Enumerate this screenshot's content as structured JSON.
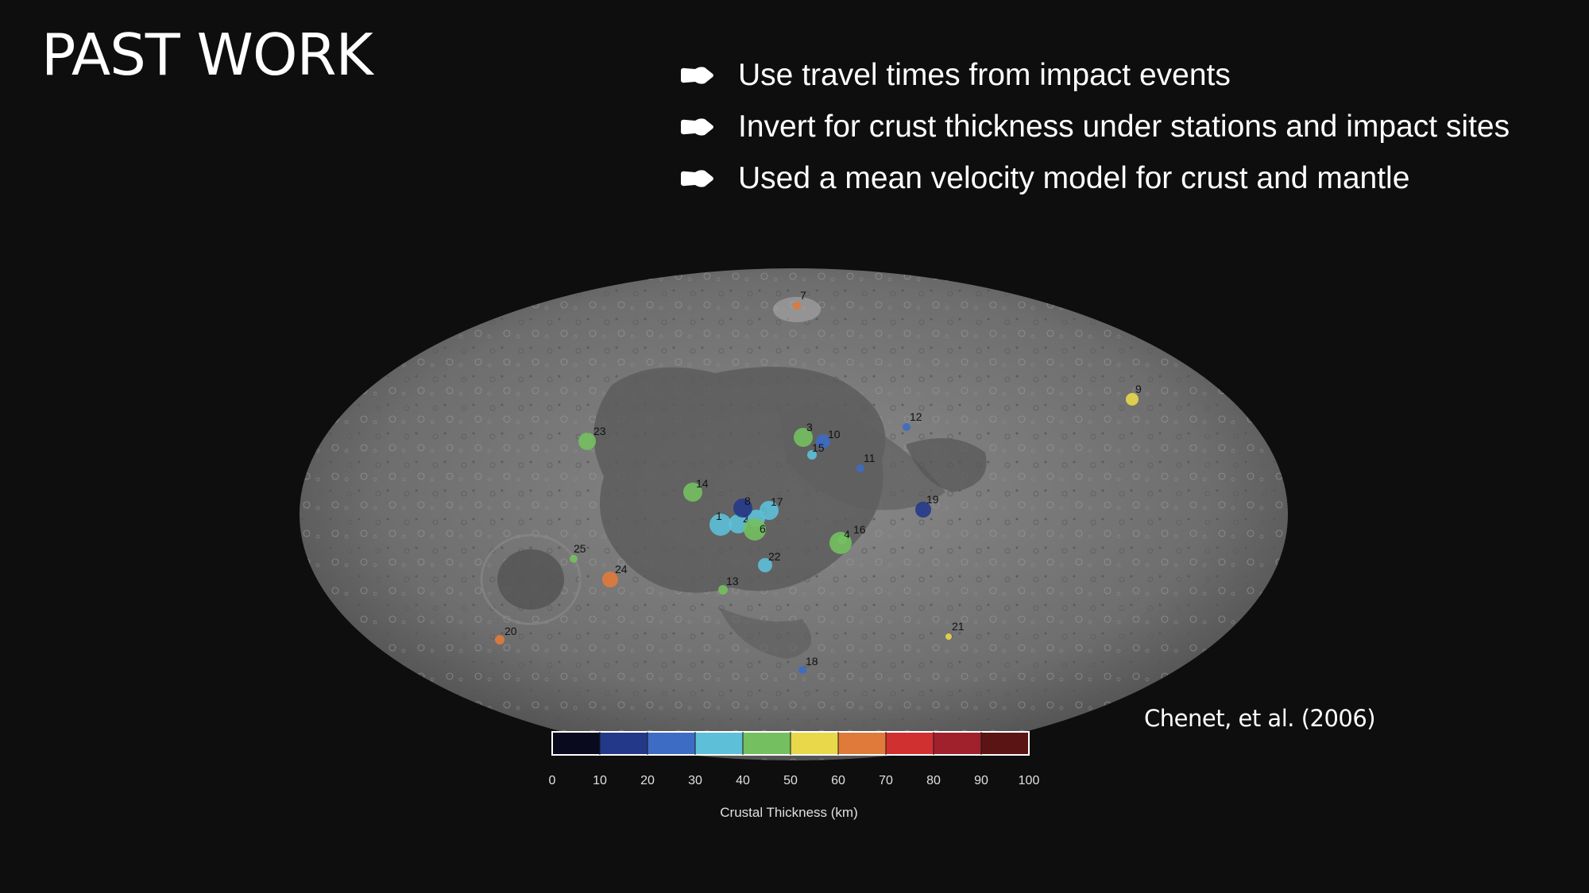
{
  "slide": {
    "title": "PAST WORK",
    "bullets": [
      {
        "icon": "arrow-bullet-icon",
        "text": "Use travel times from impact events"
      },
      {
        "icon": "arrow-bullet-icon",
        "text": "Invert for crust thickness under stations and impact sites"
      },
      {
        "icon": "arrow-bullet-icon",
        "text": "Used a mean velocity model for crust and mantle"
      }
    ],
    "credit": "Chenet, et al. (2006)"
  },
  "figure": {
    "markers": [
      {
        "label": "1",
        "value": 36
      },
      {
        "label": "2",
        "value": 30
      },
      {
        "label": "3",
        "value": 40
      },
      {
        "label": "4",
        "value": 42
      },
      {
        "label": "5",
        "value": 33
      },
      {
        "label": "6",
        "value": 40
      },
      {
        "label": "7",
        "value": 62
      },
      {
        "label": "8",
        "value": 16
      },
      {
        "label": "9",
        "value": 52
      },
      {
        "label": "10",
        "value": 28
      },
      {
        "label": "11",
        "value": 22
      },
      {
        "label": "12",
        "value": 22
      },
      {
        "label": "13",
        "value": 42
      },
      {
        "label": "14",
        "value": 44
      },
      {
        "label": "15",
        "value": 34
      },
      {
        "label": "16",
        "value": 40
      },
      {
        "label": "17",
        "value": 36
      },
      {
        "label": "18",
        "value": 22
      },
      {
        "label": "19",
        "value": 18
      },
      {
        "label": "20",
        "value": 62
      },
      {
        "label": "21",
        "value": 52
      },
      {
        "label": "22",
        "value": 34
      },
      {
        "label": "23",
        "value": 40
      },
      {
        "label": "24",
        "value": 68
      },
      {
        "label": "25",
        "value": 42
      }
    ],
    "colorbar": {
      "ticks": [
        "0",
        "10",
        "20",
        "30",
        "40",
        "50",
        "60",
        "70",
        "80",
        "90",
        "100"
      ],
      "label": "Crustal Thickness (km)",
      "colors": [
        "#0a0a1e",
        "#24388a",
        "#3d6cc4",
        "#5ec0d8",
        "#74c060",
        "#e8d84a",
        "#e07a3a",
        "#d03030",
        "#a0202c",
        "#5a1414"
      ]
    }
  }
}
